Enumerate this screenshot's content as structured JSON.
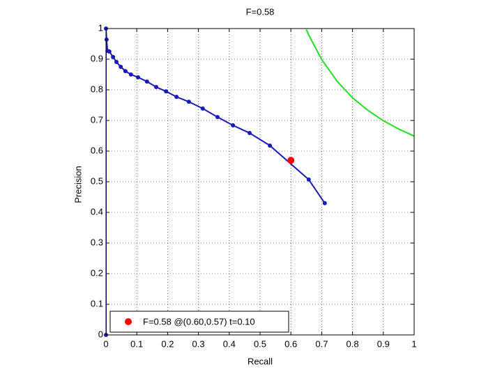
{
  "chart_data": {
    "type": "line",
    "title": "F=0.58",
    "x_label": "Recall",
    "y_label": "Precision",
    "xlim": [
      0,
      1
    ],
    "ylim": [
      0,
      1
    ],
    "xticks": [
      0,
      0.1,
      0.2,
      0.3,
      0.4,
      0.5,
      0.6,
      0.7,
      0.8,
      0.9,
      1
    ],
    "yticks": [
      0,
      0.1,
      0.2,
      0.3,
      0.4,
      0.5,
      0.6,
      0.7,
      0.8,
      0.9,
      1
    ],
    "grid": true,
    "legend": "lower left",
    "series": [
      {
        "color": "#1a1ab8",
        "markers": true,
        "x": [
          0,
          0,
          0.002,
          0.005,
          0.011,
          0.023,
          0.034,
          0.048,
          0.063,
          0.081,
          0.104,
          0.133,
          0.163,
          0.195,
          0.229,
          0.269,
          0.314,
          0.362,
          0.412,
          0.466,
          0.532,
          0.658,
          0.71
        ],
        "values": [
          0,
          1,
          0.964,
          0.927,
          0.925,
          0.907,
          0.891,
          0.875,
          0.861,
          0.85,
          0.841,
          0.827,
          0.809,
          0.795,
          0.777,
          0.761,
          0.739,
          0.711,
          0.684,
          0.659,
          0.618,
          0.507,
          0.43
        ]
      },
      {
        "color": "#22dd22",
        "markers": false,
        "x": [
          0.65,
          0.66,
          0.7,
          0.75,
          0.8,
          0.85,
          0.9,
          0.95,
          1
        ],
        "values": [
          0.997,
          0.975,
          0.899,
          0.828,
          0.774,
          0.733,
          0.699,
          0.672,
          0.649
        ]
      },
      {
        "name": "F=0.58 @(0.60,0.57) t=0.10",
        "color": "#ff0000",
        "markers": true,
        "marker_size": 5,
        "x": [
          0.6
        ],
        "values": [
          0.57
        ]
      }
    ]
  }
}
